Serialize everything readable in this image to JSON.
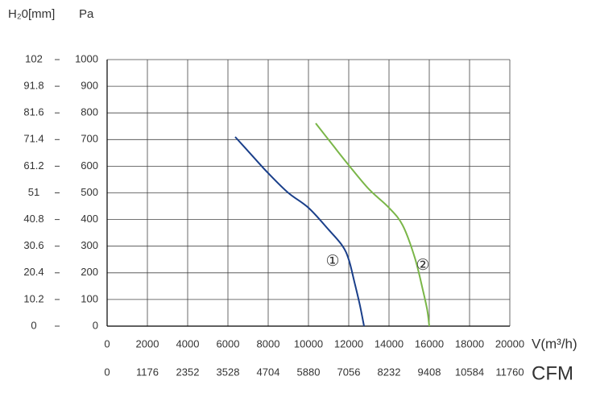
{
  "chart_data": {
    "type": "line",
    "y_label": "H₂0[mm]",
    "y_unit": "Pa",
    "x_label": "V(m³/h)",
    "x2_label": "CFM",
    "xlim": [
      0,
      20000
    ],
    "xticks": [
      0,
      2000,
      4000,
      6000,
      8000,
      10000,
      12000,
      14000,
      16000,
      18000,
      20000
    ],
    "x2lim": [
      0,
      11760
    ],
    "x2ticks": [
      0,
      1176,
      2352,
      3528,
      4704,
      5880,
      7056,
      8232,
      9408,
      10584,
      11760
    ],
    "ylim": [
      0,
      1000
    ],
    "yticks": [
      0,
      100,
      200,
      300,
      400,
      500,
      600,
      700,
      800,
      900,
      1000
    ],
    "y2lim": [
      0,
      102
    ],
    "y2ticks": [
      0,
      10.2,
      20.4,
      30.6,
      40.8,
      51,
      61.2,
      71.4,
      81.6,
      91.8,
      102
    ],
    "grid": true,
    "series": [
      {
        "name": "①",
        "color": "#1a3f8a",
        "x": [
          6360,
          7200,
          8000,
          9000,
          10000,
          11000,
          11680,
          12000,
          12280,
          12550,
          12760
        ],
        "values": [
          710,
          640,
          574,
          500,
          444,
          362,
          302,
          250,
          166,
          80,
          0
        ]
      },
      {
        "name": "②",
        "color": "#7ab648",
        "x": [
          10360,
          11200,
          12000,
          13000,
          14000,
          14680,
          15280,
          15680,
          15900,
          16000
        ],
        "values": [
          761,
          680,
          604,
          514,
          444,
          378,
          257,
          136,
          60,
          0
        ]
      }
    ]
  }
}
